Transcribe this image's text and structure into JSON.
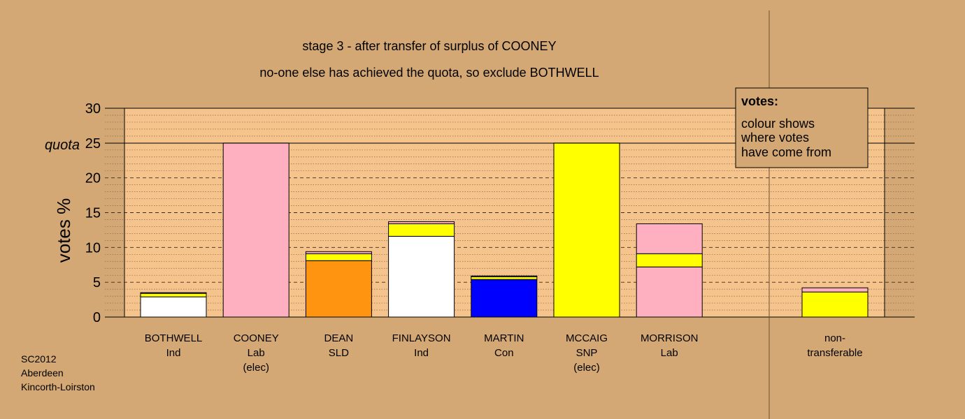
{
  "chart_data": {
    "type": "bar",
    "stacked": true,
    "title": "stage 3 - after transfer of surplus of COONEY",
    "subtitle": "no-one else has achieved the quota, so exclude BOTHWELL",
    "ylabel": "votes %",
    "ylim": [
      0,
      30
    ],
    "yticks": [
      "0",
      "5",
      "10",
      "15",
      "20",
      "25",
      "30"
    ],
    "quota": {
      "label": "quota",
      "value": 25
    },
    "legend": {
      "title": "votes:",
      "lines": [
        "colour shows",
        "where votes",
        "have come from"
      ],
      "placement": "top-right"
    },
    "grid": {
      "major_step": 5,
      "minor_step": 1
    },
    "bars": [
      {
        "name": [
          "BOTHWELL",
          "Ind"
        ],
        "segments": [
          {
            "color": "#ffffff",
            "value": 2.9
          },
          {
            "color": "#ffff00",
            "value": 0.5
          },
          {
            "color": "#ffb0c0",
            "value": 0.1
          }
        ]
      },
      {
        "name": [
          "COONEY",
          "Lab",
          "(elec)"
        ],
        "segments": [
          {
            "color": "#ffb0c0",
            "value": 25
          }
        ]
      },
      {
        "name": [
          "DEAN",
          "SLD"
        ],
        "segments": [
          {
            "color": "#ff9410",
            "value": 8.1
          },
          {
            "color": "#ffff00",
            "value": 1.0
          },
          {
            "color": "#ffb0c0",
            "value": 0.3
          }
        ]
      },
      {
        "name": [
          "FINLAYSON",
          "Ind"
        ],
        "segments": [
          {
            "color": "#ffffff",
            "value": 11.6
          },
          {
            "color": "#ffff00",
            "value": 1.8
          },
          {
            "color": "#ffb0c0",
            "value": 0.3
          }
        ]
      },
      {
        "name": [
          "MARTIN",
          "Con"
        ],
        "segments": [
          {
            "color": "#0000ff",
            "value": 5.4
          },
          {
            "color": "#ffff00",
            "value": 0.4
          },
          {
            "color": "#ffb0c0",
            "value": 0.1
          }
        ]
      },
      {
        "name": [
          "MCCAIG",
          "SNP",
          "(elec)"
        ],
        "segments": [
          {
            "color": "#ffff00",
            "value": 25
          }
        ]
      },
      {
        "name": [
          "MORRISON",
          "Lab"
        ],
        "segments": [
          {
            "color": "#ffb0c0",
            "value": 7.2
          },
          {
            "color": "#ffff00",
            "value": 1.9
          },
          {
            "color": "#ffb0c0",
            "value": 4.3
          }
        ]
      }
    ],
    "non_transferable": {
      "name": [
        "non-",
        "transferable"
      ],
      "segments": [
        {
          "color": "#ffff00",
          "value": 3.6
        },
        {
          "color": "#ffb0c0",
          "value": 0.6
        }
      ]
    }
  },
  "footer": {
    "lines": [
      "SC2012",
      "Aberdeen",
      "Kincorth-Loirston"
    ]
  }
}
